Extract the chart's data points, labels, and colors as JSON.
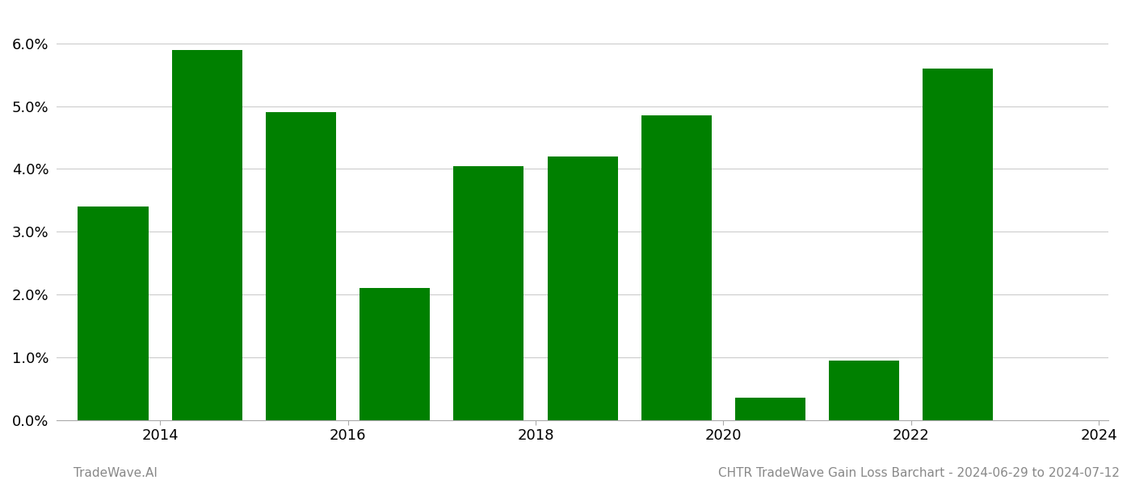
{
  "years": [
    2014,
    2015,
    2016,
    2017,
    2018,
    2019,
    2020,
    2021,
    2022,
    2023
  ],
  "values": [
    0.034,
    0.059,
    0.049,
    0.021,
    0.0405,
    0.042,
    0.0485,
    0.0035,
    0.0095,
    0.056
  ],
  "bar_color": "#008000",
  "background_color": "#ffffff",
  "grid_color": "#cccccc",
  "ylim": [
    0.0,
    0.065
  ],
  "yticks": [
    0.0,
    0.01,
    0.02,
    0.03,
    0.04,
    0.05,
    0.06
  ],
  "tick_fontsize": 13,
  "xtick_positions": [
    2014.5,
    2016.5,
    2018.5,
    2020.5,
    2022.5,
    2024.5
  ],
  "xtick_labels": [
    "2014",
    "2016",
    "2018",
    "2020",
    "2022",
    "2024"
  ],
  "xlim": [
    2013.4,
    2024.6
  ],
  "footer_left": "TradeWave.AI",
  "footer_right": "CHTR TradeWave Gain Loss Barchart - 2024-06-29 to 2024-07-12",
  "footer_fontsize": 11,
  "bar_width": 0.75
}
